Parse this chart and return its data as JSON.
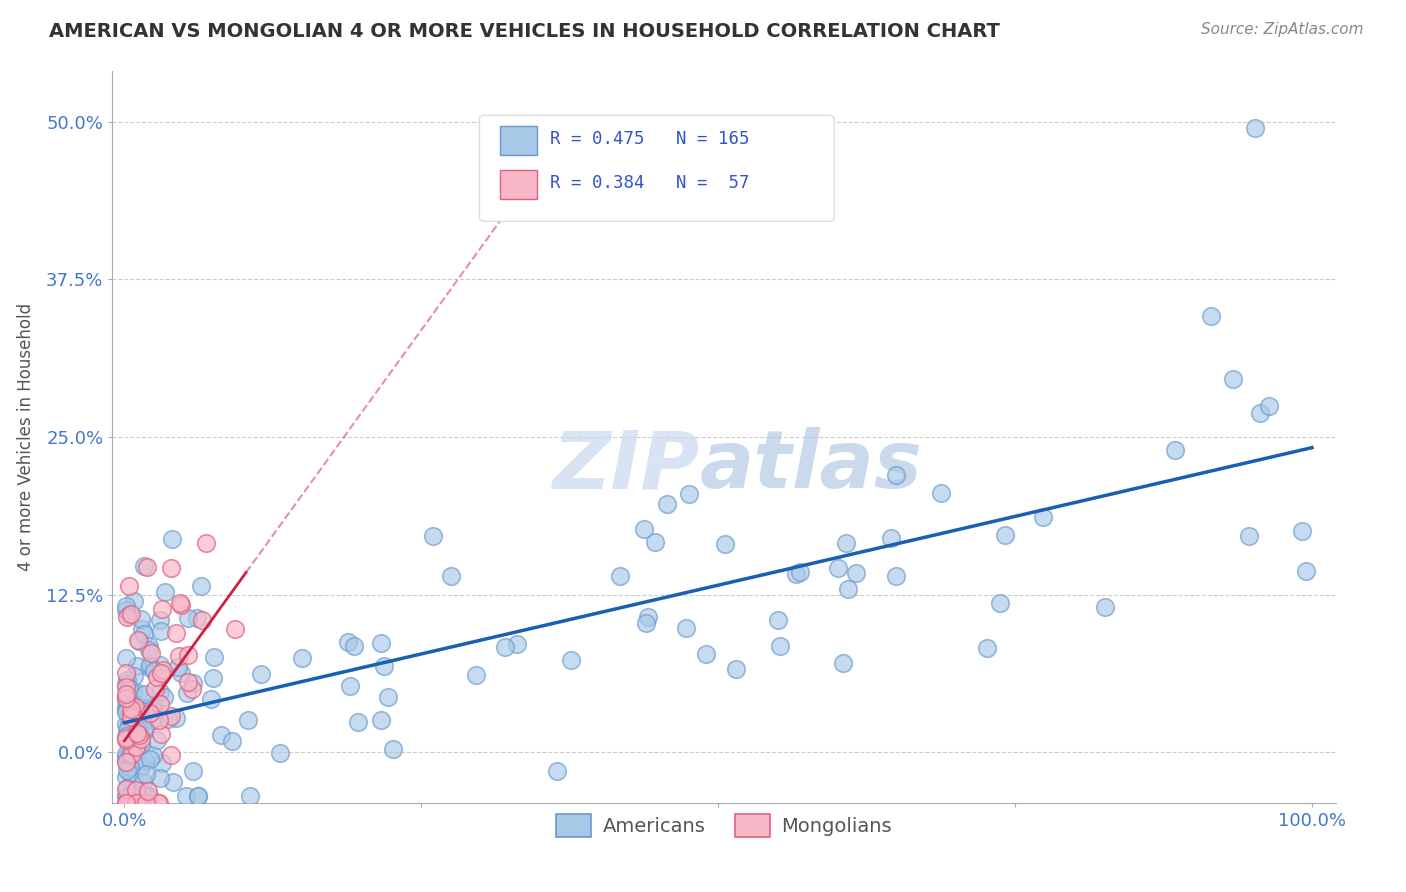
{
  "title": "AMERICAN VS MONGOLIAN 4 OR MORE VEHICLES IN HOUSEHOLD CORRELATION CHART",
  "source": "Source: ZipAtlas.com",
  "ylabel": "4 or more Vehicles in Household",
  "xlim": [
    -0.01,
    1.02
  ],
  "ylim": [
    -0.04,
    0.54
  ],
  "yticks": [
    0.0,
    0.125,
    0.25,
    0.375,
    0.5
  ],
  "ytick_labels": [
    "0.0%",
    "12.5%",
    "25.0%",
    "37.5%",
    "50.0%"
  ],
  "xticks": [
    0.0,
    0.25,
    0.5,
    0.75,
    1.0
  ],
  "xtick_labels_show": [
    "0.0%",
    "100.0%"
  ],
  "american_color": "#a8c8e8",
  "american_edge_color": "#6699cc",
  "mongolian_color": "#f8b8c8",
  "mongolian_edge_color": "#e06080",
  "american_line_color": "#1a5fb4",
  "mongolian_line_color": "#cc2244",
  "legend_text_color": "#3355cc",
  "grid_color": "#cccccc",
  "background_color": "#ffffff",
  "watermark_text": "ZIPatlas",
  "watermark_color": "#d0ddf0",
  "title_color": "#333333",
  "source_color": "#888888",
  "ylabel_color": "#555555",
  "ytick_color": "#4477cc",
  "xtick_color": "#4477cc",
  "bottom_label_color": "#555555"
}
